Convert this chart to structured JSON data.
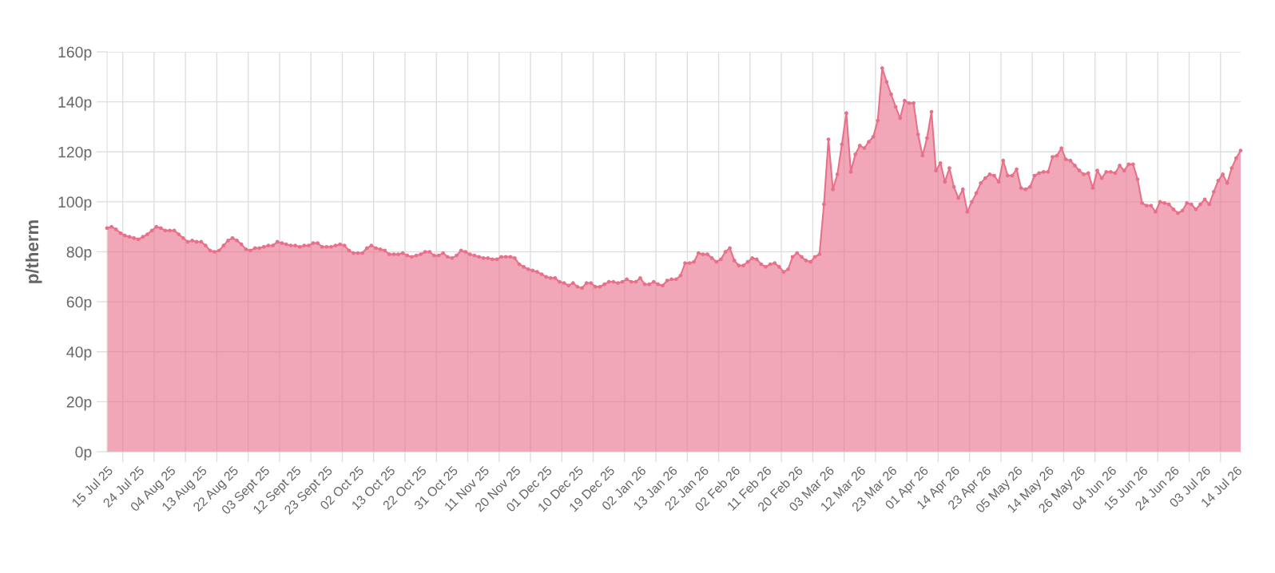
{
  "chart_data": {
    "type": "area",
    "ylabel": "p/therm",
    "categories": [
      "15 Jul 25",
      null,
      null,
      null,
      null,
      null,
      null,
      "24 Jul 25",
      null,
      null,
      null,
      null,
      null,
      null,
      "04 Aug 25",
      null,
      null,
      null,
      null,
      null,
      null,
      "13 Aug 25",
      null,
      null,
      null,
      null,
      null,
      null,
      "22 Aug 25",
      null,
      null,
      null,
      null,
      null,
      null,
      "03 Sept 25",
      null,
      null,
      null,
      null,
      null,
      null,
      "12 Sept 25",
      null,
      null,
      null,
      null,
      null,
      null,
      "23 Sept 25",
      null,
      null,
      null,
      null,
      null,
      null,
      "02 Oct 25",
      null,
      null,
      null,
      null,
      null,
      null,
      "13 Oct 25",
      null,
      null,
      null,
      null,
      null,
      null,
      "22 Oct 25",
      null,
      null,
      null,
      null,
      null,
      null,
      "31 Oct 25",
      null,
      null,
      null,
      null,
      null,
      null,
      "11 Nov 25",
      null,
      null,
      null,
      null,
      null,
      null,
      "20 Nov 25",
      null,
      null,
      null,
      null,
      null,
      null,
      "01 Dec 25",
      null,
      null,
      null,
      null,
      null,
      null,
      "10 Dec 25",
      null,
      null,
      null,
      null,
      null,
      null,
      "19 Dec 25",
      null,
      null,
      null,
      null,
      null,
      null,
      "02 Jan 26",
      null,
      null,
      null,
      null,
      null,
      null,
      "13 Jan 26",
      null,
      null,
      null,
      null,
      null,
      null,
      "22 Jan 26",
      null,
      null,
      null,
      null,
      null,
      null,
      "02 Feb 26",
      null,
      null,
      null,
      null,
      null,
      null,
      "11 Feb 26",
      null,
      null,
      null,
      null,
      null,
      null,
      "20 Feb 26",
      null,
      null,
      null,
      null,
      null,
      null,
      "03 Mar 26",
      null,
      null,
      null,
      null,
      null,
      null,
      "12 Mar 26",
      null,
      null,
      null,
      null,
      null,
      null,
      "23 Mar 26",
      null,
      null,
      null,
      null,
      null,
      null,
      "01 Apr 26",
      null,
      null,
      null,
      null,
      null,
      null,
      "14 Apr 26",
      null,
      null,
      null,
      null,
      null,
      null,
      "23 Apr 26",
      null,
      null,
      null,
      null,
      null,
      null,
      "05 May 26",
      null,
      null,
      null,
      null,
      null,
      null,
      "14 May 26",
      null,
      null,
      null,
      null,
      null,
      null,
      "26 May 26",
      null,
      null,
      null,
      null,
      null,
      null,
      "04 Jun 26",
      null,
      null,
      null,
      null,
      null,
      null,
      "15 Jun 26",
      null,
      null,
      null,
      null,
      null,
      null,
      "24 Jun 26",
      null,
      null,
      null,
      null,
      null,
      null,
      "03 Jul 26",
      null,
      null,
      null,
      null,
      null,
      null,
      "14 Jul 26",
      null
    ],
    "values": [
      89.5,
      90,
      89,
      87.5,
      86.5,
      86,
      85.5,
      85,
      86,
      87,
      88.5,
      90,
      89.5,
      88.5,
      88.5,
      88.5,
      87,
      85.5,
      84,
      84.5,
      84,
      84,
      82.5,
      80.5,
      80,
      80.5,
      82.5,
      84.5,
      85.5,
      84.5,
      83,
      81,
      80.5,
      81.5,
      81.5,
      82,
      82.5,
      82.5,
      84,
      83.5,
      83,
      82.5,
      82.5,
      82,
      82.5,
      82.5,
      83.5,
      83.5,
      82,
      82,
      82,
      82.5,
      83,
      82.5,
      80.5,
      79.5,
      79.5,
      79.5,
      81.5,
      82.5,
      81.5,
      81,
      80.5,
      79,
      79,
      79,
      79.5,
      78.5,
      78,
      78.5,
      79,
      80,
      80,
      78.5,
      78.5,
      79.5,
      78,
      77.5,
      78.5,
      80.5,
      80,
      79,
      78.5,
      78,
      77.5,
      77.5,
      77,
      77,
      78,
      78,
      78,
      77.5,
      75,
      74,
      73,
      72.5,
      72,
      71,
      70,
      69.5,
      69.5,
      68,
      67.5,
      66.5,
      67.5,
      66,
      65.5,
      67.5,
      67.5,
      66,
      66,
      67,
      68,
      68,
      67.5,
      68,
      69,
      68,
      68,
      69.5,
      67,
      67,
      68,
      67,
      66.5,
      68.5,
      69,
      69,
      70.5,
      75.5,
      75.5,
      76,
      79.5,
      79,
      79,
      77.5,
      76,
      77,
      80,
      81.5,
      76.5,
      74.5,
      74.5,
      76,
      77.5,
      77,
      75,
      74,
      75,
      75.5,
      74,
      72,
      73,
      78,
      79.5,
      78,
      76.5,
      76,
      78,
      79,
      99,
      125,
      105,
      111,
      123,
      135.5,
      112,
      119,
      122.5,
      121.5,
      124,
      126,
      132.5,
      153.5,
      148,
      143,
      138,
      133.5,
      140.5,
      139.5,
      139.5,
      127,
      118.5,
      125.5,
      136,
      112.5,
      115.5,
      108,
      113.5,
      106,
      101.5,
      105,
      96,
      100,
      103.5,
      107.5,
      109.5,
      111,
      110.5,
      108,
      116.5,
      110.5,
      110.5,
      113,
      105.5,
      105,
      106,
      110.5,
      111.5,
      112,
      112,
      118,
      118.5,
      121.5,
      117,
      116.5,
      114.5,
      112.5,
      111,
      111.5,
      105.5,
      112.5,
      109.5,
      112,
      112,
      111.5,
      114.5,
      112.5,
      115,
      115,
      109,
      99.5,
      98.5,
      98.5,
      96,
      100,
      99.5,
      99,
      97,
      95.5,
      96.5,
      99.5,
      99,
      97,
      99,
      101,
      99,
      104,
      108.5,
      111,
      107.5,
      113.5,
      117.5,
      120.5
    ],
    "color": "#e8718a",
    "marker": "circle",
    "ylim": [
      0,
      160
    ],
    "yticks": [
      {
        "value": 0,
        "label": "0p"
      },
      {
        "value": 20,
        "label": "20p"
      },
      {
        "value": 40,
        "label": "40p"
      },
      {
        "value": 60,
        "label": "60p"
      },
      {
        "value": 80,
        "label": "80p"
      },
      {
        "value": 100,
        "label": "100p"
      },
      {
        "value": 120,
        "label": "120p"
      },
      {
        "value": 140,
        "label": "140p"
      },
      {
        "value": 160,
        "label": "160p"
      }
    ],
    "grid": true
  }
}
